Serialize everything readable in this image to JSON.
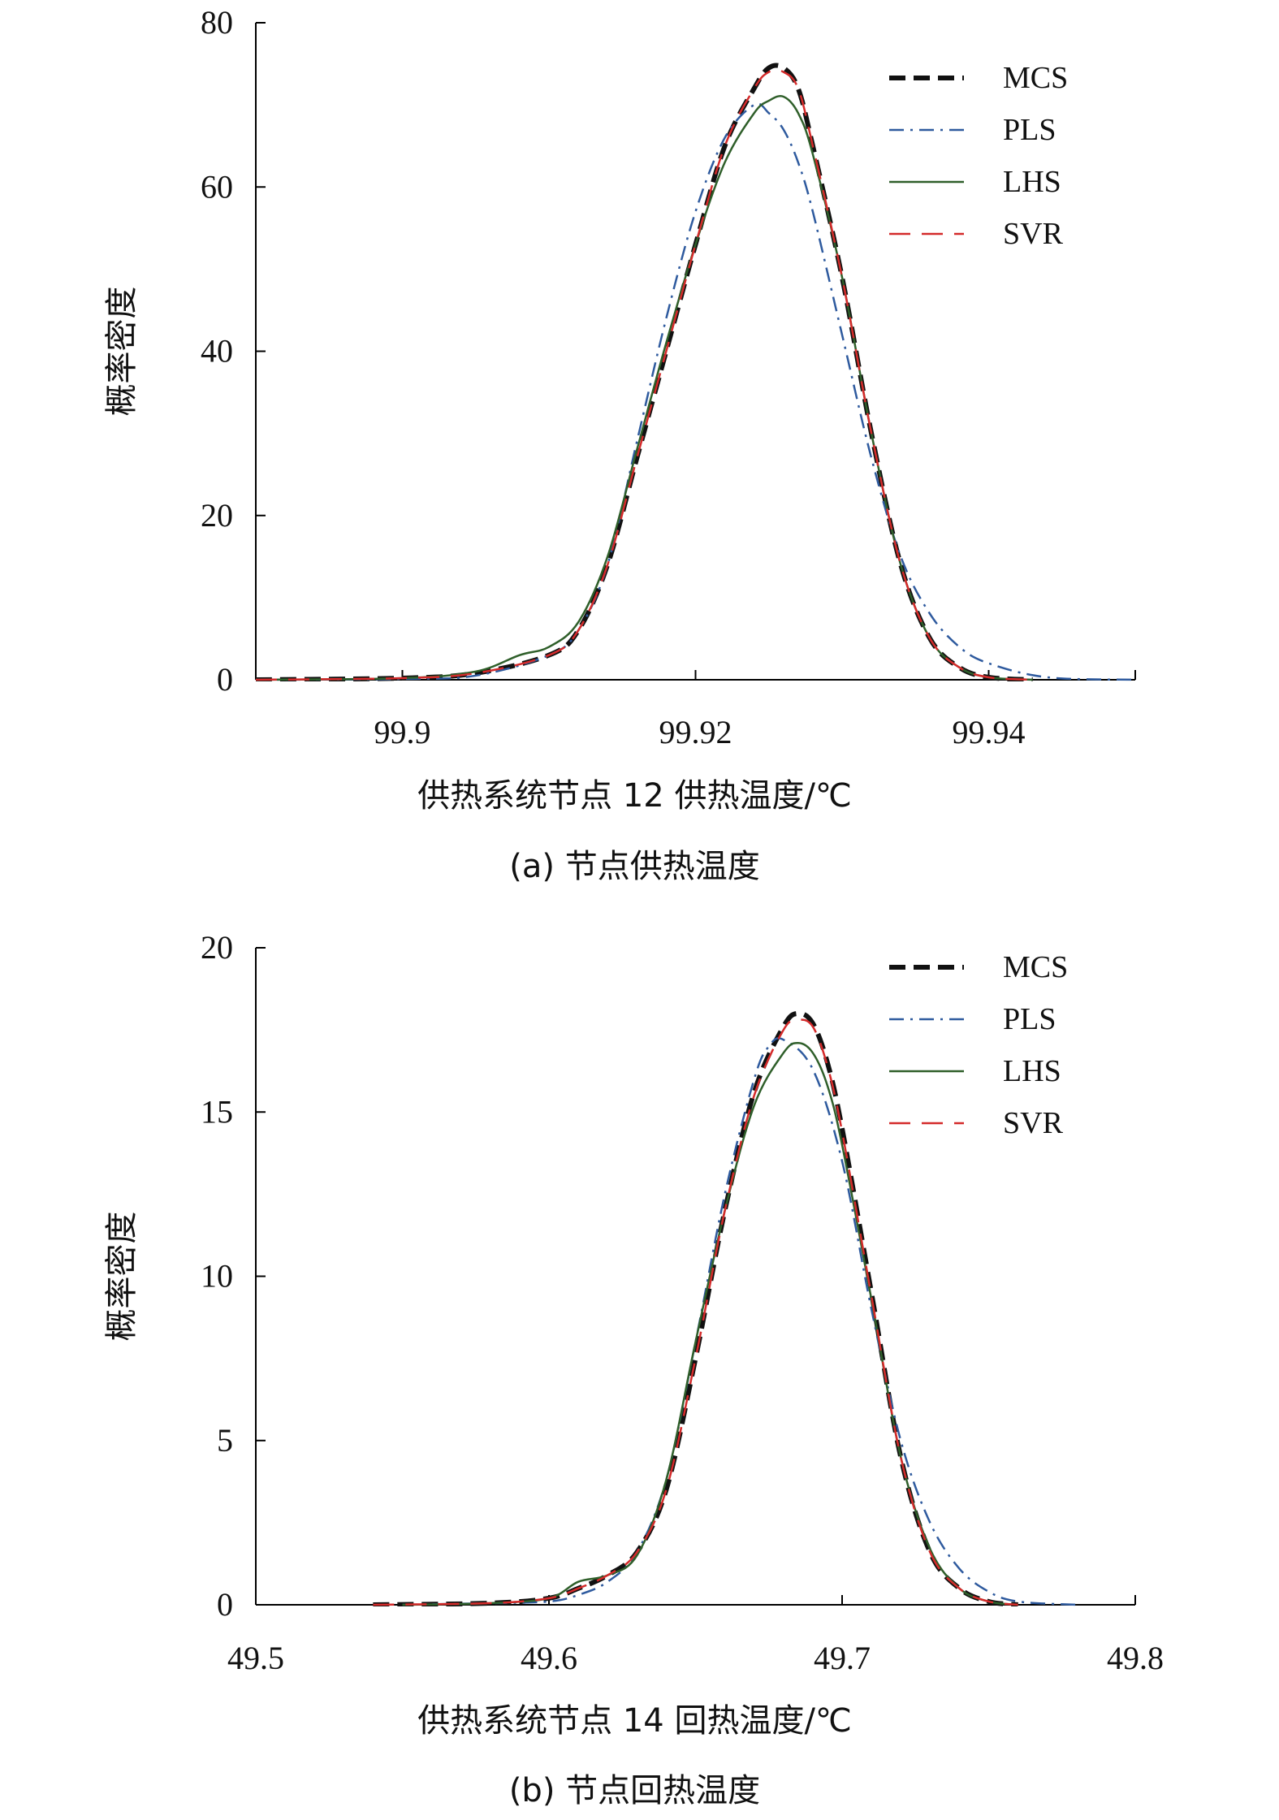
{
  "chart_data": [
    {
      "type": "line",
      "caption": "(a) 节点供热温度",
      "xlabel": "供热系统节点 12 供热温度/℃",
      "ylabel": "概率密度",
      "xlim": [
        99.89,
        99.95
      ],
      "ylim": [
        0,
        80
      ],
      "xticks": [
        99.9,
        99.92,
        99.94
      ],
      "xtick_labels": [
        "99.9",
        "99.92",
        "99.94"
      ],
      "yticks": [
        0,
        20,
        40,
        60,
        80
      ],
      "ytick_labels": [
        "0",
        "20",
        "40",
        "60",
        "80"
      ],
      "legend_position": "top-right",
      "series": [
        {
          "name": "MCS",
          "color": "#111111",
          "style": "dashed-bold",
          "x": [
            99.89,
            99.9,
            99.905,
            99.91,
            99.912,
            99.914,
            99.916,
            99.918,
            99.92,
            99.922,
            99.924,
            99.925,
            99.926,
            99.927,
            99.928,
            99.93,
            99.932,
            99.934,
            99.936,
            99.938,
            99.94,
            99.943
          ],
          "y": [
            0,
            0.2,
            0.8,
            3,
            6,
            14,
            27,
            40,
            53,
            65,
            72,
            74.5,
            74.5,
            72,
            65,
            49,
            30,
            14,
            5,
            1.5,
            0.3,
            0
          ]
        },
        {
          "name": "PLS",
          "color": "#2e5a9e",
          "style": "dash-dot",
          "x": [
            99.89,
            99.9,
            99.905,
            99.91,
            99.912,
            99.914,
            99.916,
            99.918,
            99.92,
            99.922,
            99.924,
            99.925,
            99.926,
            99.927,
            99.928,
            99.93,
            99.932,
            99.934,
            99.936,
            99.938,
            99.94,
            99.944,
            99.95
          ],
          "y": [
            0,
            0.1,
            0.5,
            3,
            6,
            14,
            29,
            44,
            57,
            66,
            70,
            69,
            67,
            63,
            57,
            42,
            27,
            15,
            8,
            4,
            2,
            0.3,
            0
          ]
        },
        {
          "name": "LHS",
          "color": "#2f5f2a",
          "style": "solid",
          "x": [
            99.89,
            99.9,
            99.905,
            99.908,
            99.91,
            99.912,
            99.914,
            99.916,
            99.918,
            99.92,
            99.922,
            99.924,
            99.925,
            99.926,
            99.927,
            99.928,
            99.93,
            99.932,
            99.934,
            99.936,
            99.938,
            99.94,
            99.943
          ],
          "y": [
            0,
            0.2,
            1,
            3,
            4,
            7,
            15,
            28,
            41,
            53,
            63,
            69,
            70.5,
            71,
            69,
            64,
            49,
            30,
            14,
            5,
            1.5,
            0.3,
            0
          ]
        },
        {
          "name": "SVR",
          "color": "#d42a2a",
          "style": "long-dash",
          "x": [
            99.89,
            99.9,
            99.905,
            99.91,
            99.912,
            99.914,
            99.916,
            99.918,
            99.92,
            99.922,
            99.924,
            99.925,
            99.926,
            99.927,
            99.928,
            99.93,
            99.932,
            99.934,
            99.936,
            99.938,
            99.94,
            99.943
          ],
          "y": [
            0,
            0.2,
            0.8,
            3,
            6,
            14,
            27,
            40,
            53,
            65,
            72,
            74,
            74,
            72,
            65,
            49,
            30,
            14,
            5,
            1.5,
            0.3,
            0
          ]
        }
      ]
    },
    {
      "type": "line",
      "caption": "(b) 节点回热温度",
      "xlabel": "供热系统节点 14 回热温度/℃",
      "ylabel": "概率密度",
      "xlim": [
        49.5,
        49.8
      ],
      "ylim": [
        0,
        20
      ],
      "xticks": [
        49.5,
        49.6,
        49.7,
        49.8
      ],
      "xtick_labels": [
        "49.5",
        "49.6",
        "49.7",
        "49.8"
      ],
      "yticks": [
        0,
        5,
        10,
        15,
        20
      ],
      "ytick_labels": [
        "0",
        "5",
        "10",
        "15",
        "20"
      ],
      "legend_position": "top-right",
      "series": [
        {
          "name": "MCS",
          "color": "#111111",
          "style": "dashed-bold",
          "x": [
            49.54,
            49.58,
            49.6,
            49.61,
            49.62,
            49.63,
            49.64,
            49.65,
            49.66,
            49.67,
            49.68,
            49.685,
            49.69,
            49.695,
            49.7,
            49.71,
            49.72,
            49.73,
            49.74,
            49.75,
            49.76
          ],
          "y": [
            0,
            0.05,
            0.2,
            0.5,
            0.9,
            1.6,
            3.5,
            7.5,
            12,
            15.6,
            17.6,
            18,
            17.7,
            16.5,
            14.5,
            9.5,
            4.5,
            1.6,
            0.5,
            0.1,
            0
          ]
        },
        {
          "name": "PLS",
          "color": "#2e5a9e",
          "style": "dash-dot",
          "x": [
            49.55,
            49.58,
            49.6,
            49.61,
            49.62,
            49.63,
            49.64,
            49.65,
            49.66,
            49.67,
            49.675,
            49.68,
            49.69,
            49.7,
            49.71,
            49.72,
            49.73,
            49.74,
            49.75,
            49.76,
            49.78
          ],
          "y": [
            0,
            0.05,
            0.1,
            0.3,
            0.7,
            1.6,
            3.8,
            8,
            12.5,
            16,
            17,
            17.2,
            16.3,
            13.5,
            9,
            5,
            2.5,
            1.1,
            0.4,
            0.1,
            0
          ]
        },
        {
          "name": "LHS",
          "color": "#2f5f2a",
          "style": "solid",
          "x": [
            49.55,
            49.58,
            49.6,
            49.61,
            49.62,
            49.63,
            49.64,
            49.65,
            49.66,
            49.67,
            49.68,
            49.685,
            49.69,
            49.695,
            49.7,
            49.71,
            49.72,
            49.73,
            49.74,
            49.75,
            49.76
          ],
          "y": [
            0,
            0.05,
            0.2,
            0.7,
            0.9,
            1.5,
            3.8,
            8,
            12,
            15.2,
            16.8,
            17.1,
            16.8,
            15.8,
            14,
            9.3,
            4.5,
            1.7,
            0.5,
            0.1,
            0
          ]
        },
        {
          "name": "SVR",
          "color": "#d42a2a",
          "style": "long-dash",
          "x": [
            49.54,
            49.58,
            49.6,
            49.61,
            49.62,
            49.63,
            49.64,
            49.65,
            49.66,
            49.67,
            49.68,
            49.685,
            49.69,
            49.695,
            49.7,
            49.71,
            49.72,
            49.73,
            49.74,
            49.75,
            49.76
          ],
          "y": [
            0,
            0.05,
            0.2,
            0.5,
            0.9,
            1.6,
            3.5,
            7.5,
            12,
            15.5,
            17.5,
            17.8,
            17.6,
            16.4,
            14.4,
            9.4,
            4.5,
            1.6,
            0.5,
            0.1,
            0
          ]
        }
      ]
    }
  ]
}
